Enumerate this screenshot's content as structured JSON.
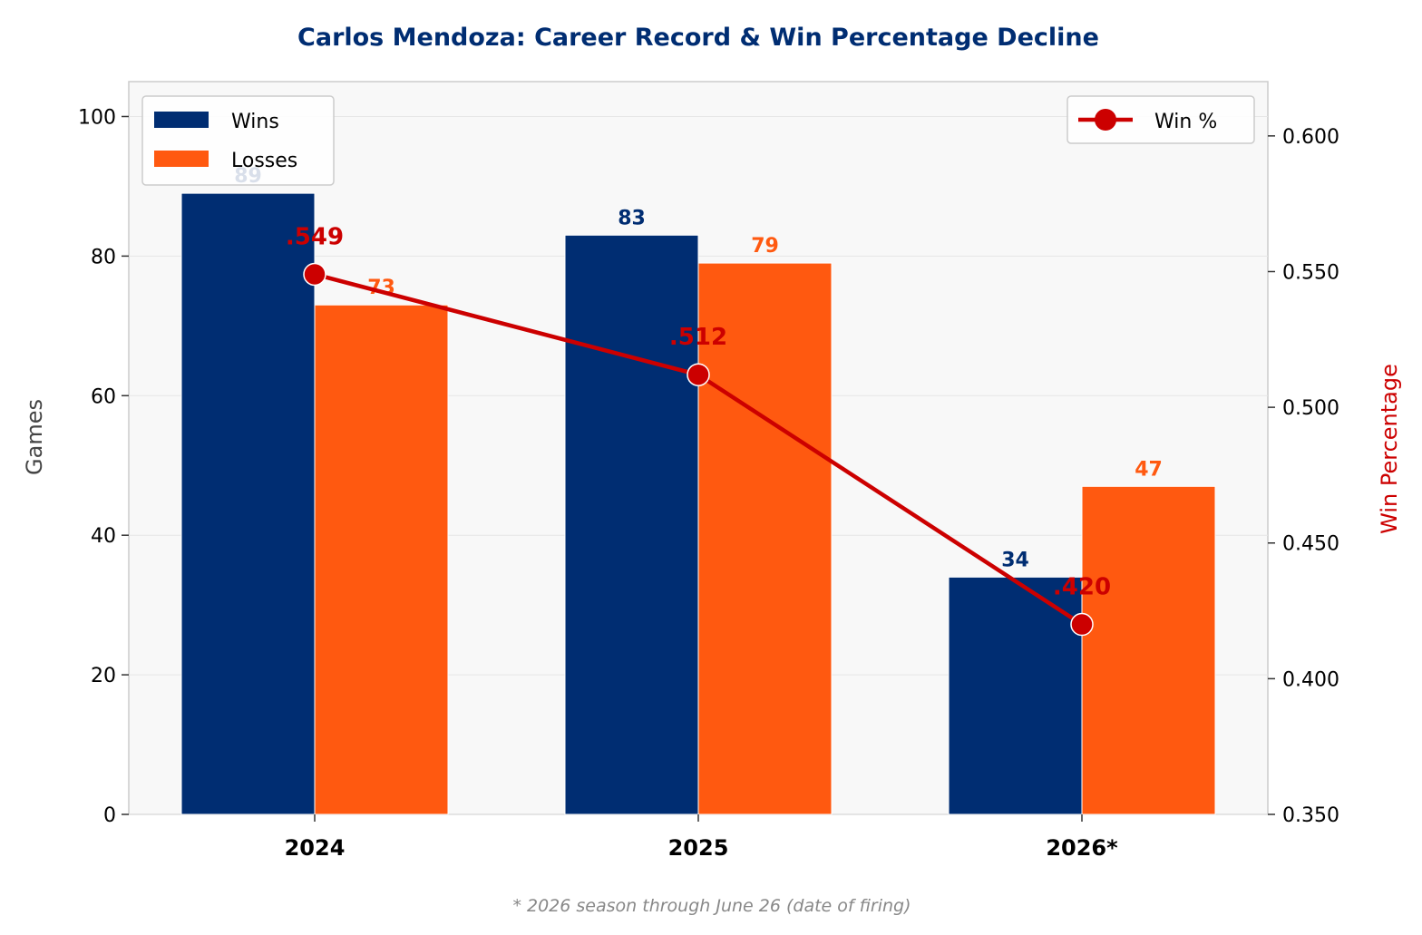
{
  "chart_data": {
    "type": "bar",
    "title": "Carlos Mendoza: Career Record & Win Percentage Decline",
    "categories": [
      "2024",
      "2025",
      "2026*"
    ],
    "series": [
      {
        "name": "Wins",
        "values": [
          89,
          83,
          34
        ],
        "color": "#002d72"
      },
      {
        "name": "Losses",
        "values": [
          73,
          79,
          47
        ],
        "color": "#ff5910"
      }
    ],
    "line_series": {
      "name": "Win %",
      "values": [
        0.549,
        0.512,
        0.42
      ],
      "labels": [
        ".549",
        ".512",
        ".420"
      ],
      "color": "#cc0000",
      "axis": "right"
    },
    "ylabel": "Games",
    "y2label": "Win Percentage",
    "ylim": [
      0,
      105
    ],
    "y2lim": [
      0.35,
      0.62
    ],
    "yticks": [
      0,
      20,
      40,
      60,
      80,
      100
    ],
    "y2ticks": [
      0.35,
      0.4,
      0.45,
      0.5,
      0.55,
      0.6
    ],
    "y2tick_labels": [
      "0.350",
      "0.400",
      "0.450",
      "0.500",
      "0.550",
      "0.600"
    ],
    "grid": true,
    "legend": {
      "bars_placement": "upper-left",
      "line_placement": "upper-right"
    },
    "footnote": "* 2026 season through June 26 (date of firing)"
  }
}
